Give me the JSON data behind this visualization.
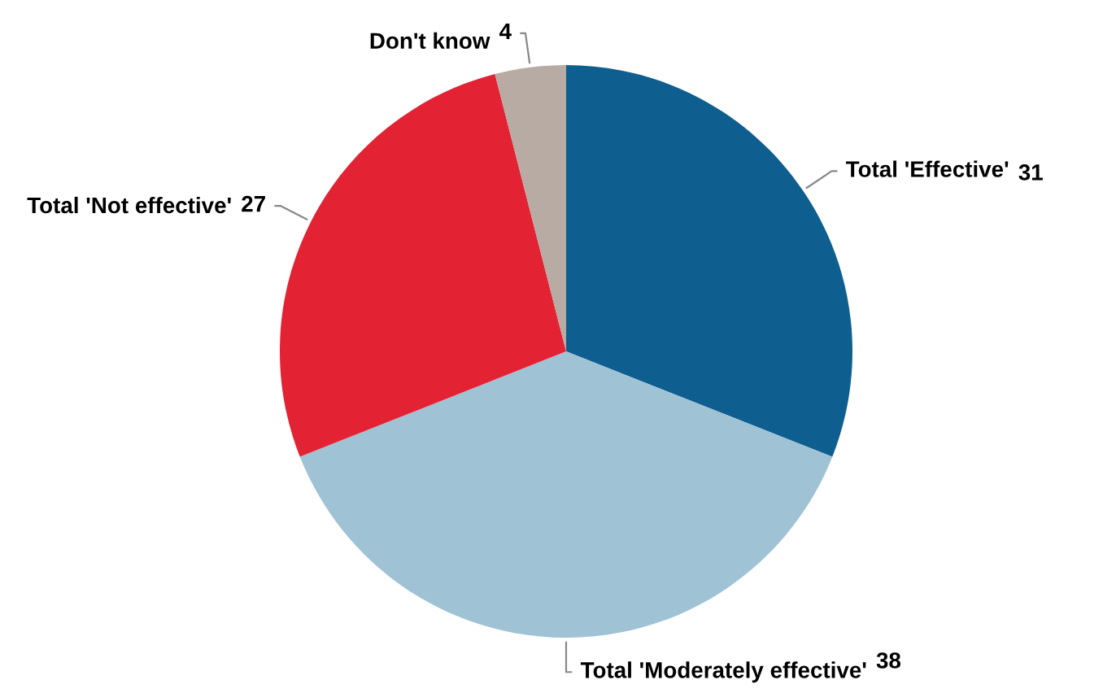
{
  "chart_data": {
    "type": "pie",
    "categories": [
      "Total 'Effective'",
      "Total 'Moderately effective'",
      "Total 'Not effective'",
      "Don't know"
    ],
    "values": [
      31,
      38,
      27,
      4
    ],
    "colors": [
      "#0e5f8f",
      "#9fc2d5",
      "#e32333",
      "#b8aba3"
    ],
    "data_labels": true
  }
}
